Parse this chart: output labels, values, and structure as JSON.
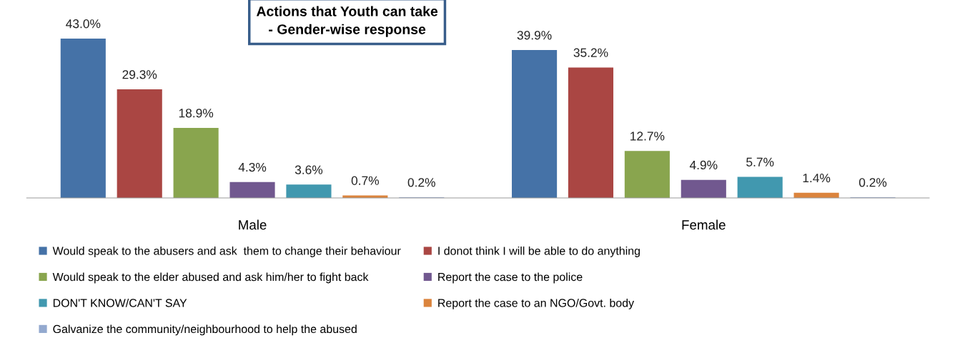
{
  "chart_data": {
    "type": "bar",
    "title": "Actions that Youth can take\n- Gender-wise response",
    "categories": [
      "Male",
      "Female"
    ],
    "series": [
      {
        "name": "Would speak to the abusers and ask  them to change their behaviour",
        "color": "#4572a7",
        "values": [
          43.0,
          39.9
        ],
        "value_labels": [
          "43.0%",
          "39.9%"
        ]
      },
      {
        "name": "I donot think I will be able to do anything",
        "color": "#aa4643",
        "values": [
          29.3,
          35.2
        ],
        "value_labels": [
          "29.3%",
          "35.2%"
        ]
      },
      {
        "name": "Would speak to the elder abused and ask him/her to fight back",
        "color": "#89a54e",
        "values": [
          18.9,
          12.7
        ],
        "value_labels": [
          "18.9%",
          "12.7%"
        ]
      },
      {
        "name": "Report the case to the police",
        "color": "#71588f",
        "values": [
          4.3,
          4.9
        ],
        "value_labels": [
          "4.3%",
          "4.9%"
        ]
      },
      {
        "name": "DON'T KNOW/CAN'T SAY",
        "color": "#4198af",
        "values": [
          3.6,
          5.7
        ],
        "value_labels": [
          "3.6%",
          "5.7%"
        ]
      },
      {
        "name": "Report the case to an NGO/Govt. body",
        "color": "#db843d",
        "values": [
          0.7,
          1.4
        ],
        "value_labels": [
          "0.7%",
          "1.4%"
        ]
      },
      {
        "name": "Galvanize the community/neighbourhood to help the abused",
        "color": "#93a9cf",
        "values": [
          0.2,
          0.2
        ],
        "value_labels": [
          "0.2%",
          "0.2%"
        ]
      }
    ],
    "legend": "bottom",
    "grid": false
  }
}
